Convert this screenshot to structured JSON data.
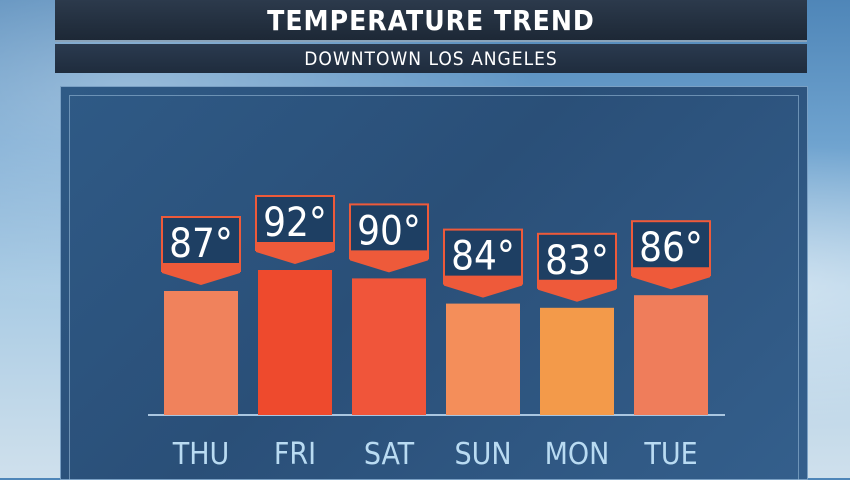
{
  "header": {
    "title": "TEMPERATURE TREND",
    "subtitle": "DOWNTOWN LOS ANGELES"
  },
  "chart_data": {
    "type": "bar",
    "categories": [
      "THU",
      "FRI",
      "SAT",
      "SUN",
      "MON",
      "TUE"
    ],
    "values": [
      87,
      92,
      90,
      84,
      83,
      86
    ],
    "value_labels": [
      "87°",
      "92°",
      "90°",
      "84°",
      "83°",
      "86°"
    ],
    "unit": "°",
    "grid": false,
    "bar_colors": [
      "#f0825c",
      "#ee4a2d",
      "#f0553a",
      "#f48e5a",
      "#f39a4a",
      "#ef7d5b"
    ],
    "label_box_color": "#ee5a3a"
  },
  "colors": {
    "title_bar": "#1f2a38",
    "panel": "#2f5a86",
    "axis_line": "#aac6e0",
    "category_text": "#b9dbf2"
  }
}
